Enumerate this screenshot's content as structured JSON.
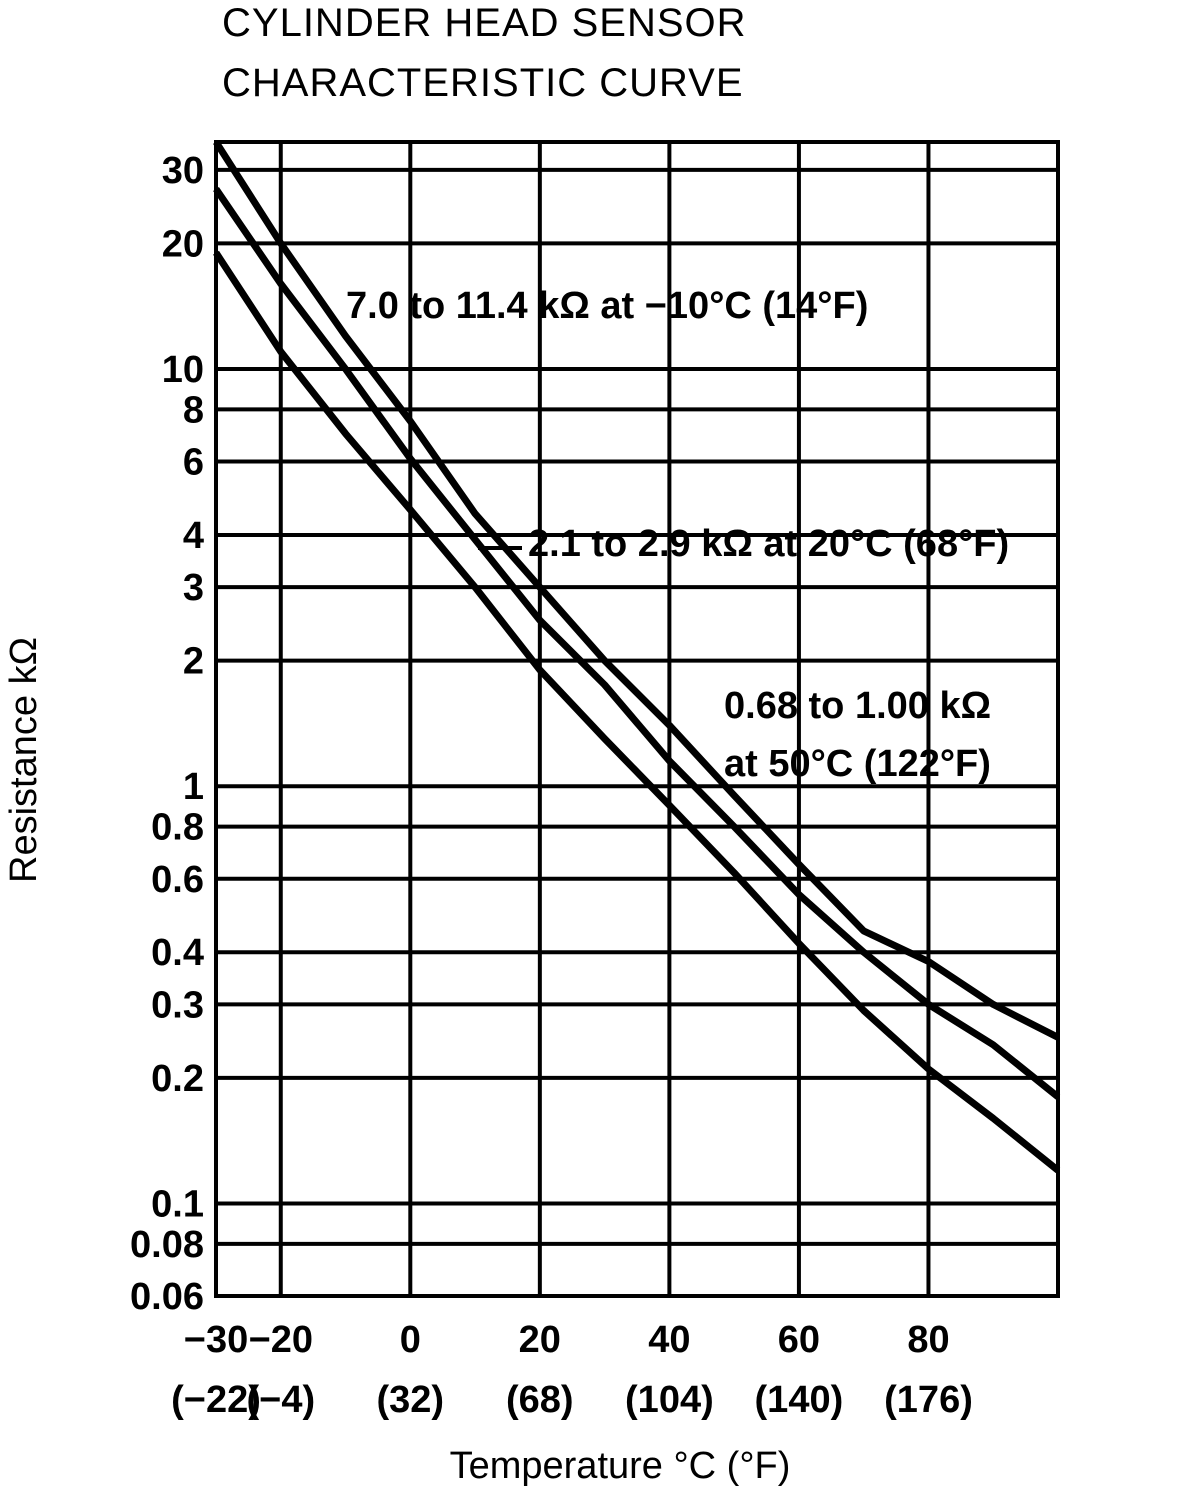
{
  "chart_data": {
    "type": "line",
    "title_lines": [
      "CYLINDER HEAD SENSOR",
      "CHARACTERISTIC CURVE"
    ],
    "xlabel": "Temperature  °C (°F)",
    "ylabel": "Resistance  kΩ",
    "y_scale": "log",
    "xlim": [
      -30,
      100
    ],
    "ylim": [
      0.06,
      35
    ],
    "x_ticks": [
      {
        "value": -30,
        "label": "−30",
        "sublabel": "(−22)"
      },
      {
        "value": -20,
        "label": "−20",
        "sublabel": "(−4)"
      },
      {
        "value": 0,
        "label": "0",
        "sublabel": "(32)"
      },
      {
        "value": 20,
        "label": "20",
        "sublabel": "(68)"
      },
      {
        "value": 40,
        "label": "40",
        "sublabel": "(104)"
      },
      {
        "value": 60,
        "label": "60",
        "sublabel": "(140)"
      },
      {
        "value": 80,
        "label": "80",
        "sublabel": "(176)"
      }
    ],
    "x_grid": [
      -20,
      0,
      20,
      40,
      60,
      80,
      100
    ],
    "y_ticks": [
      {
        "value": 30,
        "label": "30"
      },
      {
        "value": 20,
        "label": "20"
      },
      {
        "value": 10,
        "label": "10"
      },
      {
        "value": 8,
        "label": "8"
      },
      {
        "value": 6,
        "label": "6"
      },
      {
        "value": 4,
        "label": "4"
      },
      {
        "value": 3,
        "label": "3"
      },
      {
        "value": 2,
        "label": "2"
      },
      {
        "value": 1,
        "label": "1"
      },
      {
        "value": 0.8,
        "label": "0.8"
      },
      {
        "value": 0.6,
        "label": "0.6"
      },
      {
        "value": 0.4,
        "label": "0.4"
      },
      {
        "value": 0.3,
        "label": "0.3"
      },
      {
        "value": 0.2,
        "label": "0.2"
      },
      {
        "value": 0.1,
        "label": "0.1"
      },
      {
        "value": 0.08,
        "label": "0.08"
      },
      {
        "value": 0.06,
        "label": "0.06"
      }
    ],
    "series": [
      {
        "x": [
          -30,
          -20,
          -10,
          0,
          10,
          20,
          30,
          40,
          50,
          60,
          70,
          80,
          90,
          100
        ],
        "y": [
          35,
          20,
          12,
          7.5,
          4.5,
          3.0,
          2.0,
          1.4,
          0.95,
          0.65,
          0.45,
          0.38,
          0.3,
          0.25
        ]
      },
      {
        "x": [
          -30,
          -20,
          -10,
          0,
          10,
          20,
          30,
          40,
          50,
          60,
          70,
          80,
          90,
          100
        ],
        "y": [
          27,
          16,
          10,
          6.1,
          3.9,
          2.5,
          1.75,
          1.15,
          0.8,
          0.55,
          0.4,
          0.3,
          0.24,
          0.18
        ]
      },
      {
        "x": [
          -30,
          -20,
          -10,
          0,
          10,
          20,
          30,
          40,
          50,
          60,
          70,
          80,
          90,
          100
        ],
        "y": [
          19,
          11,
          7,
          4.6,
          3.0,
          1.9,
          1.3,
          0.9,
          0.62,
          0.42,
          0.29,
          0.21,
          0.16,
          0.12
        ]
      }
    ],
    "annotations": [
      {
        "lines": [
          "7.0 to 11.4 kΩ at −10°C (14°F)"
        ]
      },
      {
        "lines": [
          "2.1 to 2.9 kΩ at 20°C (68°F)"
        ]
      },
      {
        "lines": [
          "0.68 to 1.00 kΩ",
          "at 50°C (122°F)"
        ]
      }
    ],
    "grid": true,
    "color": "#000000"
  }
}
